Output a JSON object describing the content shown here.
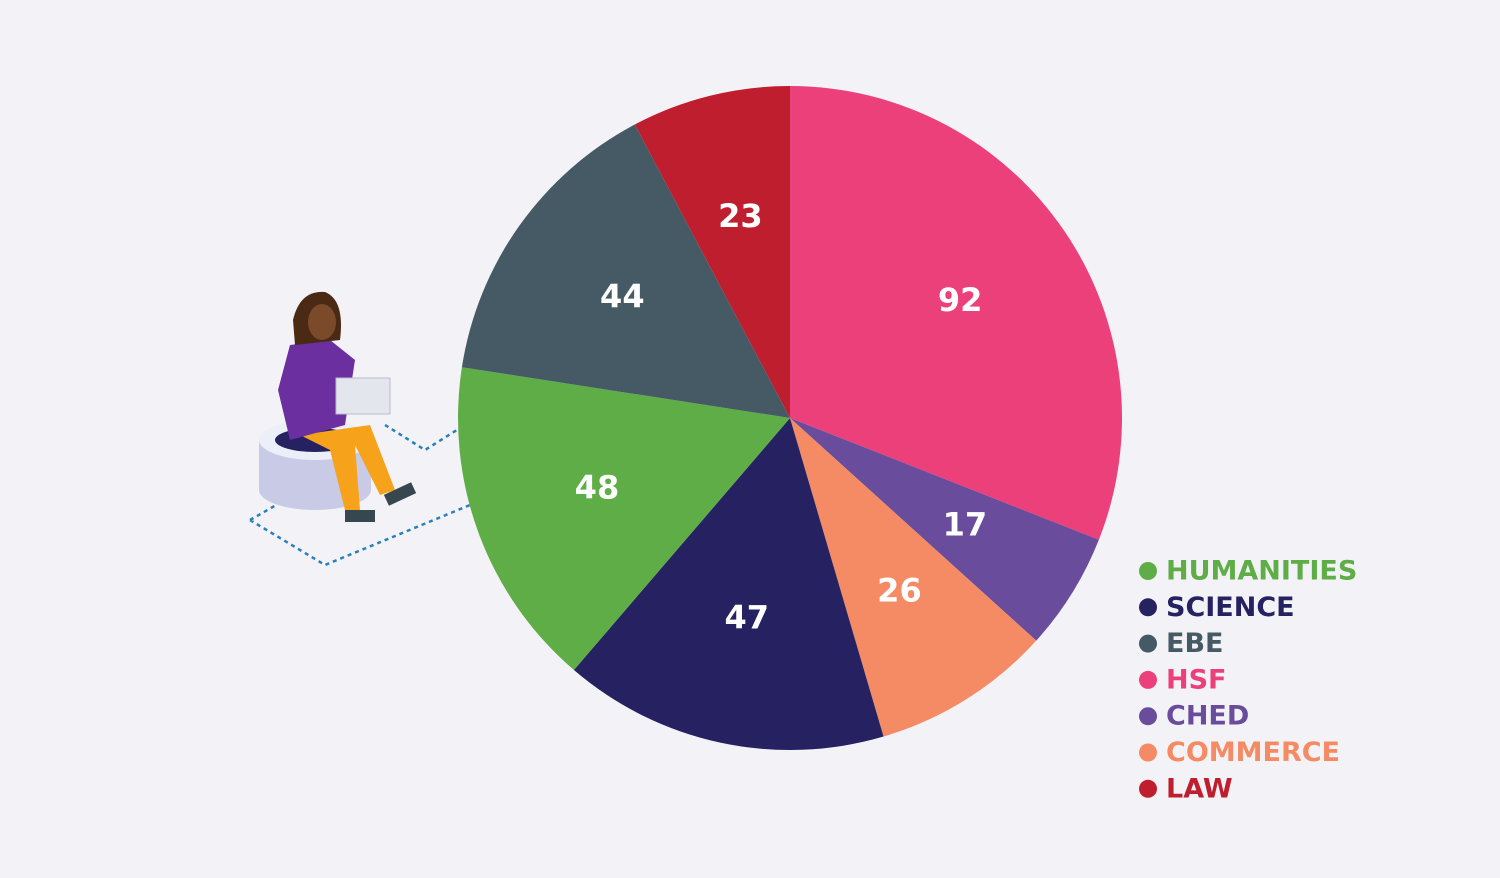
{
  "chart_data": {
    "type": "pie",
    "categories": [
      "HUMANITIES",
      "SCIENCE",
      "EBE",
      "HSF",
      "CHED",
      "COMMERCE",
      "LAW"
    ],
    "values": [
      48,
      47,
      44,
      92,
      17,
      26,
      23
    ],
    "colors": [
      "#5fad46",
      "#262262",
      "#455a64",
      "#ec407a",
      "#6a4c9c",
      "#f48b64",
      "#be1e2d"
    ],
    "legend": "right"
  }
}
